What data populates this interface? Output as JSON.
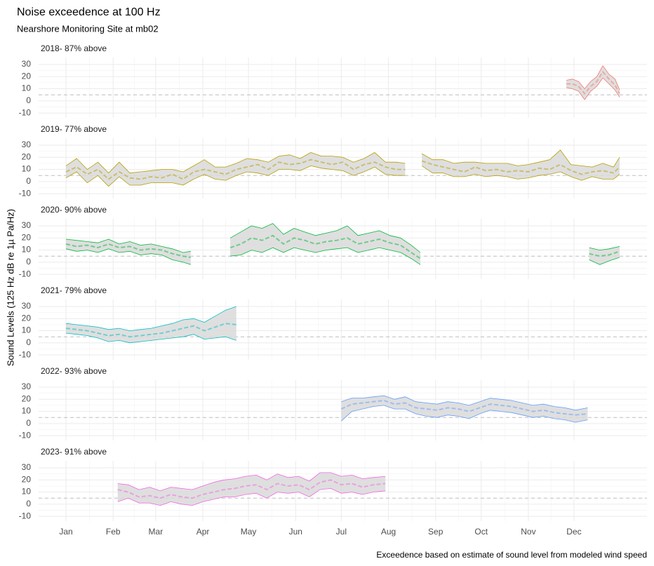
{
  "title": "Noise exceedence at 100 Hz",
  "subtitle": "Nearshore Monitoring Site at mb02",
  "y_axis_label": "Sound Levels (125 Hz dB re 1µ Pa/Hz)",
  "caption": "Exceedence based on estimate of sound level from modeled wind speed",
  "chart_data": [
    {
      "type": "line",
      "title": "2018- 87% above",
      "xlim": [
        -17,
        383
      ],
      "ylim": [
        -14,
        35.8
      ],
      "yticks": [
        -10,
        0,
        10,
        20,
        30
      ],
      "threshold": 5,
      "grid": true,
      "x": [
        330,
        334,
        338,
        342,
        346,
        350,
        354,
        358,
        362,
        365
      ],
      "series": [
        {
          "color": "#F8766D",
          "values": [
            17,
            18,
            16,
            10,
            16,
            20,
            29,
            22,
            18,
            9
          ]
        },
        {
          "color": "#F8766D",
          "values": [
            14,
            14,
            12,
            6,
            12,
            16,
            24,
            18,
            13,
            6
          ]
        },
        {
          "color": "#F8766D",
          "values": [
            11,
            10,
            8,
            1,
            8,
            12,
            19,
            14,
            9,
            3
          ]
        }
      ]
    },
    {
      "type": "line",
      "title": "2019- 77% above",
      "xlim": [
        -17,
        383
      ],
      "ylim": [
        -14,
        35.8
      ],
      "yticks": [
        -10,
        0,
        10,
        20,
        30
      ],
      "threshold": 5,
      "grid": true,
      "x": [
        1,
        8,
        15,
        22,
        29,
        36,
        43,
        50,
        57,
        64,
        71,
        78,
        85,
        92,
        99,
        106,
        113,
        120,
        127,
        134,
        141,
        148,
        155,
        162,
        169,
        176,
        183,
        190,
        197,
        204,
        211,
        218,
        224,
        229,
        235,
        242,
        249,
        256,
        263,
        270,
        277,
        284,
        291,
        298,
        305,
        312,
        319,
        326,
        333,
        340,
        347,
        354,
        361,
        365
      ],
      "series": [
        {
          "color": "#B79F00",
          "values": [
            13,
            19,
            10,
            16,
            7,
            16,
            7,
            8,
            9,
            10,
            10,
            8,
            13,
            18,
            12,
            12,
            15,
            19,
            18,
            16,
            21,
            22,
            19,
            24,
            21,
            21,
            20,
            16,
            19,
            24,
            16,
            16,
            15,
            null,
            23,
            18,
            18,
            15,
            16,
            16,
            15,
            15,
            15,
            13,
            14,
            16,
            18,
            26,
            14,
            13,
            12,
            15,
            12,
            20
          ]
        },
        {
          "color": "#B79F00",
          "values": [
            8,
            12,
            6,
            10,
            2,
            8,
            3,
            2,
            4,
            3,
            6,
            2,
            8,
            10,
            8,
            6,
            10,
            12,
            14,
            10,
            16,
            14,
            15,
            18,
            16,
            14,
            16,
            10,
            14,
            16,
            12,
            10,
            10,
            null,
            17,
            14,
            12,
            10,
            8,
            12,
            9,
            10,
            8,
            9,
            8,
            11,
            10,
            14,
            9,
            6,
            8,
            9,
            7,
            12
          ]
        },
        {
          "color": "#B79F00",
          "values": [
            3,
            8,
            -1,
            5,
            -4,
            4,
            -3,
            -3,
            -1,
            -1,
            -1,
            -3,
            2,
            6,
            2,
            1,
            5,
            8,
            7,
            5,
            10,
            10,
            9,
            13,
            11,
            10,
            9,
            5,
            8,
            12,
            6,
            5,
            5,
            null,
            13,
            7,
            7,
            4,
            4,
            6,
            4,
            5,
            4,
            2,
            3,
            5,
            6,
            8,
            4,
            1,
            4,
            2,
            2,
            6
          ]
        }
      ]
    },
    {
      "type": "line",
      "title": "2020- 90% above",
      "xlim": [
        -17,
        383
      ],
      "ylim": [
        -14,
        35.8
      ],
      "yticks": [
        -10,
        0,
        10,
        20,
        30
      ],
      "threshold": 5,
      "grid": true,
      "x": [
        1,
        8,
        15,
        22,
        29,
        36,
        43,
        50,
        57,
        64,
        71,
        78,
        83,
        96,
        109,
        116,
        123,
        130,
        137,
        144,
        151,
        158,
        165,
        172,
        179,
        186,
        193,
        200,
        207,
        214,
        221,
        228,
        234,
        290,
        345,
        352,
        358,
        365
      ],
      "series": [
        {
          "color": "#00BA38",
          "values": [
            19,
            18,
            17,
            16,
            19,
            15,
            17,
            14,
            15,
            13,
            11,
            8,
            9,
            null,
            20,
            25,
            30,
            28,
            32,
            23,
            28,
            25,
            22,
            24,
            26,
            30,
            22,
            24,
            26,
            22,
            20,
            14,
            8,
            null,
            12,
            10,
            11,
            13
          ]
        },
        {
          "color": "#00BA38",
          "values": [
            15,
            13,
            14,
            12,
            15,
            12,
            13,
            10,
            11,
            10,
            7,
            5,
            4,
            null,
            12,
            15,
            20,
            18,
            22,
            15,
            20,
            18,
            15,
            17,
            18,
            20,
            15,
            17,
            19,
            16,
            14,
            8,
            3,
            null,
            7,
            5,
            6,
            9
          ]
        },
        {
          "color": "#00BA38",
          "values": [
            11,
            9,
            10,
            8,
            11,
            8,
            9,
            6,
            7,
            6,
            2,
            0,
            -2,
            null,
            5,
            6,
            10,
            8,
            12,
            8,
            12,
            10,
            8,
            10,
            11,
            12,
            8,
            10,
            12,
            10,
            8,
            3,
            -2,
            null,
            2,
            -2,
            1,
            4
          ]
        }
      ]
    },
    {
      "type": "line",
      "title": "2021- 79% above",
      "xlim": [
        -17,
        383
      ],
      "ylim": [
        -14,
        35.8
      ],
      "yticks": [
        -10,
        0,
        10,
        20,
        30
      ],
      "threshold": 5,
      "grid": true,
      "x": [
        1,
        8,
        15,
        22,
        29,
        36,
        43,
        50,
        57,
        64,
        71,
        78,
        85,
        92,
        99,
        106,
        113
      ],
      "series": [
        {
          "color": "#00BFC4",
          "values": [
            16,
            15,
            14,
            13,
            11,
            12,
            10,
            11,
            12,
            14,
            16,
            19,
            20,
            17,
            22,
            27,
            30
          ]
        },
        {
          "color": "#00BFC4",
          "values": [
            12,
            11,
            10,
            8,
            6,
            7,
            5,
            6,
            7,
            8,
            10,
            12,
            14,
            10,
            13,
            16,
            15
          ]
        },
        {
          "color": "#00BFC4",
          "values": [
            8,
            7,
            6,
            4,
            1,
            2,
            0,
            1,
            2,
            3,
            4,
            5,
            7,
            3,
            4,
            5,
            2
          ]
        }
      ]
    },
    {
      "type": "line",
      "title": "2022- 93% above",
      "xlim": [
        -17,
        383
      ],
      "ylim": [
        -14,
        35.8
      ],
      "yticks": [
        -10,
        0,
        10,
        20,
        30
      ],
      "threshold": 5,
      "grid": true,
      "x": [
        182,
        189,
        196,
        203,
        210,
        217,
        224,
        231,
        238,
        245,
        252,
        259,
        266,
        273,
        280,
        287,
        294,
        301,
        308,
        315,
        322,
        329,
        336,
        344
      ],
      "series": [
        {
          "color": "#619CFF",
          "values": [
            18,
            21,
            21,
            22,
            23,
            20,
            22,
            18,
            17,
            16,
            18,
            17,
            15,
            18,
            21,
            20,
            19,
            17,
            15,
            16,
            14,
            13,
            11,
            13
          ]
        },
        {
          "color": "#619CFF",
          "values": [
            12,
            16,
            17,
            18,
            19,
            16,
            17,
            13,
            12,
            11,
            13,
            12,
            10,
            13,
            16,
            15,
            14,
            12,
            10,
            11,
            9,
            8,
            7,
            8
          ]
        },
        {
          "color": "#619CFF",
          "values": [
            2,
            10,
            12,
            14,
            15,
            12,
            12,
            8,
            6,
            5,
            7,
            6,
            4,
            8,
            11,
            10,
            9,
            7,
            5,
            6,
            4,
            3,
            1,
            3
          ]
        }
      ]
    },
    {
      "type": "line",
      "title": "2023- 91% above",
      "xlim": [
        -17,
        383
      ],
      "ylim": [
        -14,
        35.8
      ],
      "yticks": [
        -10,
        0,
        10,
        20,
        30
      ],
      "threshold": 5,
      "grid": true,
      "xticks": [
        {
          "value": 1,
          "label": "Jan"
        },
        {
          "value": 32,
          "label": "Feb"
        },
        {
          "value": 60,
          "label": "Mar"
        },
        {
          "value": 91,
          "label": "Apr"
        },
        {
          "value": 121,
          "label": "May"
        },
        {
          "value": 152,
          "label": "Jun"
        },
        {
          "value": 182,
          "label": "Jul"
        },
        {
          "value": 213,
          "label": "Aug"
        },
        {
          "value": 244,
          "label": "Sep"
        },
        {
          "value": 274,
          "label": "Oct"
        },
        {
          "value": 305,
          "label": "Nov"
        },
        {
          "value": 335,
          "label": "Dec"
        }
      ],
      "x": [
        35,
        42,
        49,
        56,
        63,
        70,
        77,
        84,
        91,
        98,
        105,
        112,
        119,
        126,
        133,
        140,
        147,
        154,
        161,
        168,
        175,
        182,
        189,
        196,
        203,
        211
      ],
      "series": [
        {
          "color": "#F564E3",
          "values": [
            17,
            16,
            12,
            14,
            11,
            14,
            13,
            12,
            15,
            18,
            20,
            21,
            23,
            24,
            20,
            25,
            22,
            23,
            19,
            26,
            26,
            23,
            24,
            21,
            22,
            23
          ]
        },
        {
          "color": "#F564E3",
          "values": [
            12,
            10,
            6,
            7,
            5,
            8,
            6,
            5,
            8,
            10,
            12,
            13,
            15,
            16,
            12,
            17,
            15,
            16,
            12,
            18,
            20,
            16,
            17,
            14,
            16,
            17
          ]
        },
        {
          "color": "#F564E3",
          "values": [
            2,
            5,
            1,
            1,
            -1,
            2,
            0,
            -1,
            2,
            4,
            6,
            6,
            8,
            9,
            5,
            10,
            9,
            10,
            6,
            12,
            13,
            9,
            10,
            8,
            10,
            11
          ]
        }
      ]
    }
  ]
}
